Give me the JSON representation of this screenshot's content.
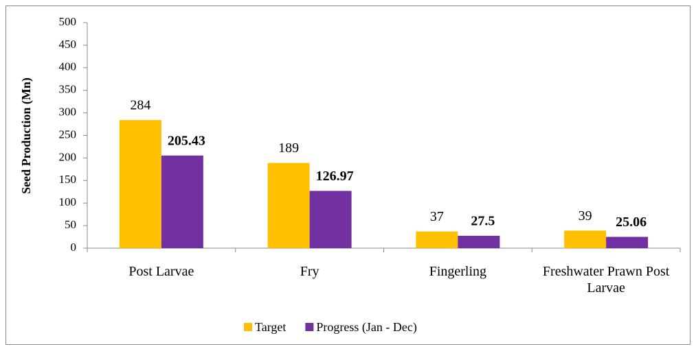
{
  "chart_data": {
    "type": "bar",
    "y_label": "Seed Production (Mn)",
    "categories": [
      "Post Larvae",
      "Fry",
      "Fingerling",
      "Freshwater Prawn Post Larvae"
    ],
    "series": [
      {
        "name": "Target",
        "color": "#ffc000",
        "values": [
          284,
          189,
          37,
          39
        ]
      },
      {
        "name": "Progress (Jan - Dec)",
        "color": "#7030a0",
        "values": [
          205.43,
          126.97,
          27.5,
          25.06
        ]
      }
    ],
    "ylim": [
      0,
      500
    ],
    "yticks": [
      0,
      50,
      100,
      150,
      200,
      250,
      300,
      350,
      400,
      450,
      500
    ],
    "legend": "bottom"
  }
}
